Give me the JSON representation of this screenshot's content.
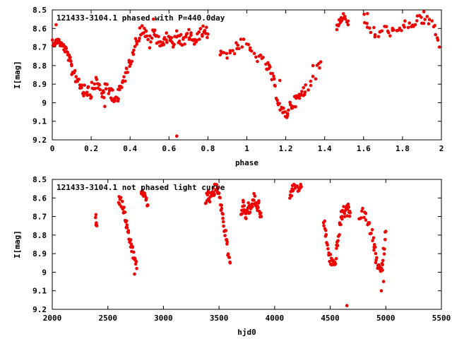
{
  "chart_data": [
    {
      "type": "scatter",
      "title": "121433-3104.1 phased with P=440.0day",
      "xlabel": "phase",
      "ylabel": "I[mag]",
      "xlim": [
        0,
        2
      ],
      "ylim": [
        9.2,
        8.5
      ],
      "y_inverted": true,
      "grid": false,
      "color": "#ee0000",
      "xticks": [
        "0",
        "0.2",
        "0.4",
        "0.6",
        "0.8",
        "1",
        "1.2",
        "1.4",
        "1.6",
        "1.8",
        "2"
      ],
      "yticks": [
        "8.5",
        "8.6",
        "8.7",
        "8.8",
        "8.9",
        "9",
        "9.1",
        "9.2"
      ],
      "segments": [
        {
          "x": [
            0.0,
            0.015,
            0.03,
            0.045,
            0.06,
            0.075,
            0.09,
            0.1
          ],
          "y": [
            8.67,
            8.68,
            8.66,
            8.69,
            8.7,
            8.73,
            8.77,
            8.8
          ],
          "jitter": 0.02
        },
        {
          "x": [
            0.1,
            0.12,
            0.14,
            0.16,
            0.18,
            0.2,
            0.22,
            0.24,
            0.26,
            0.28,
            0.3,
            0.32,
            0.34
          ],
          "y": [
            8.82,
            8.85,
            8.89,
            8.93,
            8.92,
            8.94,
            8.89,
            8.91,
            8.95,
            8.93,
            8.94,
            8.96,
            8.98
          ],
          "jitter": 0.04
        },
        {
          "x": [
            0.34,
            0.36,
            0.38,
            0.4,
            0.42,
            0.44,
            0.46,
            0.48,
            0.5,
            0.52,
            0.54,
            0.56,
            0.58,
            0.6,
            0.62,
            0.64,
            0.66,
            0.68,
            0.7,
            0.72,
            0.74,
            0.76,
            0.78,
            0.8
          ],
          "y": [
            8.95,
            8.9,
            8.83,
            8.78,
            8.7,
            8.65,
            8.6,
            8.63,
            8.68,
            8.62,
            8.65,
            8.68,
            8.67,
            8.63,
            8.7,
            8.64,
            8.66,
            8.68,
            8.63,
            8.65,
            8.68,
            8.62,
            8.61,
            8.63
          ],
          "jitter": 0.03
        },
        {
          "x": [
            0.86,
            0.9,
            0.94,
            0.98,
            1.02,
            1.06,
            1.1,
            1.12,
            1.14,
            1.16,
            1.18,
            1.2,
            1.22,
            1.24,
            1.26,
            1.28,
            1.3,
            1.34,
            1.38
          ],
          "y": [
            8.72,
            8.74,
            8.7,
            8.68,
            8.72,
            8.76,
            8.8,
            8.83,
            8.9,
            8.98,
            9.05,
            9.07,
            9.02,
            9.0,
            8.98,
            8.96,
            8.93,
            8.86,
            8.78
          ],
          "jitter": 0.03
        },
        {
          "x": [
            1.46,
            1.48,
            1.5,
            1.52
          ],
          "y": [
            8.6,
            8.55,
            8.53,
            8.56
          ],
          "jitter": 0.02
        },
        {
          "x": [
            1.6,
            1.64,
            1.68,
            1.72,
            1.76,
            1.8,
            1.84,
            1.88,
            1.92,
            1.96,
            1.99
          ],
          "y": [
            8.55,
            8.62,
            8.63,
            8.6,
            8.63,
            8.6,
            8.57,
            8.56,
            8.55,
            8.58,
            8.7
          ],
          "jitter": 0.03
        }
      ],
      "outliers": {
        "x": [
          0.64,
          0.02,
          0.18,
          0.27,
          0.52,
          1.17,
          1.34,
          1.52,
          1.62,
          1.91
        ],
        "y": [
          9.18,
          8.58,
          8.96,
          9.02,
          8.55,
          8.88,
          8.8,
          8.58,
          8.52,
          8.51
        ]
      }
    },
    {
      "type": "scatter",
      "title": "121433-3104.1 not phased light curve",
      "xlabel": "hjd0",
      "ylabel": "I[mag]",
      "xlim": [
        2000,
        5500
      ],
      "ylim": [
        9.2,
        8.5
      ],
      "y_inverted": true,
      "grid": false,
      "color": "#ee0000",
      "xticks": [
        "2000",
        "2500",
        "3000",
        "3500",
        "4000",
        "4500",
        "5000",
        "5500"
      ],
      "yticks": [
        "8.5",
        "8.6",
        "8.7",
        "8.8",
        "8.9",
        "9",
        "9.1",
        "9.2"
      ],
      "segments": [
        {
          "x": [
            2390,
            2400
          ],
          "y": [
            8.7,
            8.75
          ],
          "jitter": 0.03
        },
        {
          "x": [
            2600,
            2620,
            2640,
            2660,
            2680,
            2700,
            2720,
            2740,
            2760
          ],
          "y": [
            8.6,
            8.63,
            8.66,
            8.72,
            8.8,
            8.83,
            8.88,
            8.93,
            8.98
          ],
          "jitter": 0.03
        },
        {
          "x": [
            2800,
            2820,
            2840,
            2860
          ],
          "y": [
            8.56,
            8.58,
            8.6,
            8.64
          ],
          "jitter": 0.02
        },
        {
          "x": [
            3380,
            3400,
            3420,
            3440,
            3460,
            3480,
            3500,
            3520,
            3540,
            3560,
            3580,
            3600
          ],
          "y": [
            8.62,
            8.58,
            8.6,
            8.58,
            8.56,
            8.53,
            8.6,
            8.65,
            8.72,
            8.8,
            8.88,
            8.95
          ],
          "jitter": 0.03
        },
        {
          "x": [
            3700,
            3720,
            3740,
            3760,
            3780,
            3800,
            3820,
            3840,
            3860,
            3880
          ],
          "y": [
            8.68,
            8.63,
            8.7,
            8.65,
            8.66,
            8.63,
            8.6,
            8.65,
            8.64,
            8.7
          ],
          "jitter": 0.03
        },
        {
          "x": [
            4140,
            4160,
            4180,
            4220,
            4240
          ],
          "y": [
            8.6,
            8.55,
            8.54,
            8.55,
            8.54
          ],
          "jitter": 0.02
        },
        {
          "x": [
            4440,
            4460,
            4480,
            4500,
            4520,
            4540,
            4560,
            4580,
            4600,
            4620,
            4640,
            4660,
            4680
          ],
          "y": [
            8.72,
            8.8,
            8.88,
            8.93,
            8.95,
            8.96,
            8.88,
            8.78,
            8.7,
            8.67,
            8.68,
            8.66,
            8.68
          ],
          "jitter": 0.03
        },
        {
          "x": [
            4760,
            4800,
            4840,
            4880,
            4900,
            4920,
            4940,
            4960,
            4980,
            5000
          ],
          "y": [
            8.7,
            8.68,
            8.74,
            8.8,
            8.88,
            8.95,
            8.98,
            9.0,
            8.9,
            8.78
          ],
          "jitter": 0.03
        }
      ],
      "outliers": {
        "x": [
          4650,
          2740,
          3480,
          4960,
          4980
        ],
        "y": [
          9.18,
          9.01,
          8.53,
          9.1,
          9.05
        ]
      }
    }
  ]
}
